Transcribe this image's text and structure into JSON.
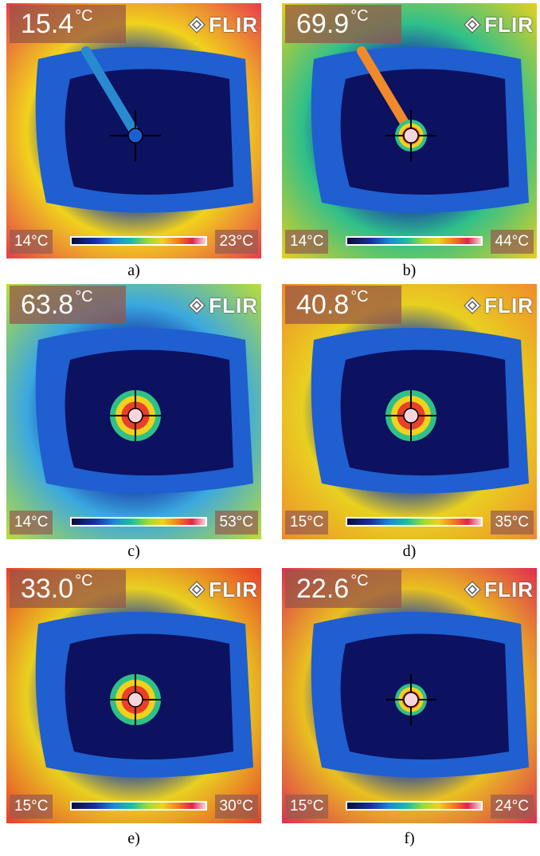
{
  "panels": [
    {
      "caption": "a)",
      "reading_value": "15.4",
      "reading_unit": "°C",
      "scale_min": "14°C",
      "scale_max": "23°C",
      "brand": "FLIR",
      "edge_color": "#e8404a",
      "ring_color": "#f0d21c",
      "spot": "small"
    },
    {
      "caption": "b)",
      "reading_value": "69.9",
      "reading_unit": "°C",
      "scale_min": "14°C",
      "scale_max": "44°C",
      "brand": "FLIR",
      "edge_color": "#e0d020",
      "ring_color": "#2fc08a",
      "spot": "medium"
    },
    {
      "caption": "c)",
      "reading_value": "63.8",
      "reading_unit": "°C",
      "scale_min": "14°C",
      "scale_max": "53°C",
      "brand": "FLIR",
      "edge_color": "#b8dc3a",
      "ring_color": "#3aa8e0",
      "spot": "large"
    },
    {
      "caption": "d)",
      "reading_value": "40.8",
      "reading_unit": "°C",
      "scale_min": "15°C",
      "scale_max": "35°C",
      "brand": "FLIR",
      "edge_color": "#f08c2a",
      "ring_color": "#e8d020",
      "spot": "large"
    },
    {
      "caption": "e)",
      "reading_value": "33.0",
      "reading_unit": "°C",
      "scale_min": "15°C",
      "scale_max": "30°C",
      "brand": "FLIR",
      "edge_color": "#e8402a",
      "ring_color": "#e8d020",
      "spot": "large"
    },
    {
      "caption": "f)",
      "reading_value": "22.6",
      "reading_unit": "°C",
      "scale_min": "15°C",
      "scale_max": "24°C",
      "brand": "FLIR",
      "edge_color": "#e03050",
      "ring_color": "#e8c020",
      "spot": "medium"
    }
  ]
}
